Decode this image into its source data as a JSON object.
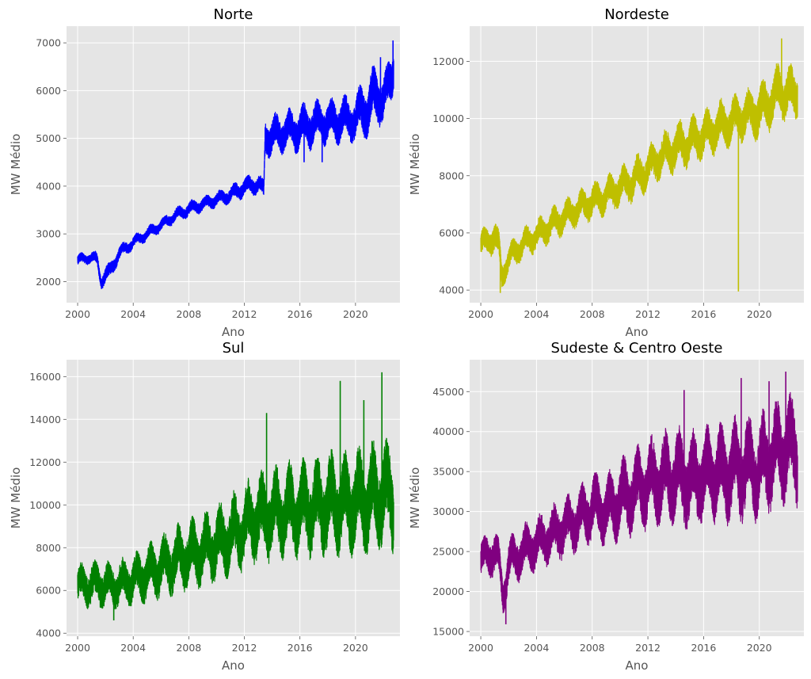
{
  "chart_data": [
    {
      "type": "line",
      "title": "Norte",
      "xlabel": "Ano",
      "ylabel": "MW Médio",
      "xlim": [
        1999.2,
        2023.2
      ],
      "ylim": [
        1560,
        7350
      ],
      "xticks": [
        2000,
        2004,
        2008,
        2012,
        2016,
        2020
      ],
      "xtick_labels": [
        "2000",
        "2004",
        "2008",
        "2012",
        "2016",
        "2020"
      ],
      "yticks": [
        2000,
        3000,
        4000,
        5000,
        6000,
        7000
      ],
      "ytick_labels": [
        "2000",
        "3000",
        "4000",
        "5000",
        "6000",
        "7000"
      ],
      "grid": true,
      "color": "#0000ff",
      "series": [
        {
          "x": [
            2000.0,
            2000.5,
            2001.0,
            2001.4,
            2001.7,
            2002.0,
            2002.3,
            2003.0,
            2004.0,
            2005.0,
            2006.0,
            2007.0,
            2008.0,
            2009.0,
            2010.0,
            2011.0,
            2012.0,
            2013.0,
            2013.4,
            2013.5,
            2014.0,
            2015.0,
            2016.0,
            2017.0,
            2018.0,
            2019.0,
            2020.0,
            2020.5,
            2021.0,
            2021.5,
            2022.0,
            2022.3,
            2022.6,
            2022.75
          ],
          "y": [
            2450,
            2480,
            2520,
            2450,
            2000,
            2150,
            2200,
            2600,
            2820,
            3000,
            3180,
            3380,
            3520,
            3620,
            3720,
            3820,
            3980,
            4050,
            3900,
            5050,
            5050,
            5150,
            5200,
            5300,
            5350,
            5400,
            5400,
            5600,
            5700,
            5900,
            5800,
            6000,
            6300,
            6600
          ],
          "band": [
            120,
            120,
            120,
            150,
            150,
            180,
            180,
            150,
            130,
            130,
            130,
            140,
            150,
            150,
            150,
            170,
            200,
            200,
            200,
            400,
            400,
            400,
            450,
            450,
            450,
            450,
            450,
            550,
            600,
            600,
            500,
            500,
            500,
            500
          ],
          "spikes": [
            {
              "x": 2022.7,
              "y": 7050
            },
            {
              "x": 2021.8,
              "y": 6700
            },
            {
              "x": 2016.3,
              "y": 4500
            },
            {
              "x": 2017.6,
              "y": 4500
            }
          ]
        }
      ]
    },
    {
      "type": "line",
      "title": "Nordeste",
      "xlabel": "Ano",
      "ylabel": "MW Médio",
      "xlim": [
        1999.2,
        2023.2
      ],
      "ylim": [
        3560,
        13230
      ],
      "xticks": [
        2000,
        2004,
        2008,
        2012,
        2016,
        2020
      ],
      "xtick_labels": [
        "2000",
        "2004",
        "2008",
        "2012",
        "2016",
        "2020"
      ],
      "yticks": [
        4000,
        6000,
        8000,
        10000,
        12000
      ],
      "ytick_labels": [
        "4000",
        "6000",
        "8000",
        "10000",
        "12000"
      ],
      "grid": true,
      "color": "#bfbf00",
      "series": [
        {
          "x": [
            2000.0,
            2000.5,
            2001.0,
            2001.3,
            2001.5,
            2002.0,
            2003.0,
            2004.0,
            2005.0,
            2006.0,
            2007.0,
            2008.0,
            2009.0,
            2010.0,
            2011.0,
            2012.0,
            2013.0,
            2014.0,
            2015.0,
            2016.0,
            2017.0,
            2018.0,
            2019.0,
            2020.0,
            2021.0,
            2021.5,
            2022.0,
            2022.5,
            2022.75
          ],
          "y": [
            5600,
            5700,
            5900,
            5500,
            4500,
            5100,
            5600,
            5900,
            6250,
            6550,
            6850,
            7100,
            7300,
            7600,
            7850,
            8250,
            8700,
            9000,
            9200,
            9400,
            9700,
            9900,
            10100,
            10250,
            10700,
            11000,
            10900,
            10800,
            11000
          ],
          "band": [
            500,
            500,
            550,
            500,
            500,
            500,
            500,
            500,
            550,
            550,
            550,
            600,
            600,
            650,
            700,
            700,
            700,
            800,
            800,
            800,
            800,
            800,
            800,
            900,
            900,
            900,
            900,
            900,
            900
          ],
          "spikes": [
            {
              "x": 2018.5,
              "y": 3950
            },
            {
              "x": 2021.6,
              "y": 12800
            },
            {
              "x": 2001.4,
              "y": 3900
            }
          ]
        }
      ]
    },
    {
      "type": "line",
      "title": "Sul",
      "xlabel": "Ano",
      "ylabel": "MW Médio",
      "xlim": [
        1999.2,
        2023.2
      ],
      "ylim": [
        3860,
        16790
      ],
      "xticks": [
        2000,
        2004,
        2008,
        2012,
        2016,
        2020
      ],
      "xtick_labels": [
        "2000",
        "2004",
        "2008",
        "2012",
        "2016",
        "2020"
      ],
      "yticks": [
        4000,
        6000,
        8000,
        10000,
        12000,
        14000,
        16000
      ],
      "ytick_labels": [
        "4000",
        "6000",
        "8000",
        "10000",
        "12000",
        "14000",
        "16000"
      ],
      "grid": true,
      "color": "#008000",
      "series": [
        {
          "x": [
            2000.0,
            2001.0,
            2002.0,
            2003.0,
            2004.0,
            2005.0,
            2006.0,
            2007.0,
            2008.0,
            2009.0,
            2010.0,
            2011.0,
            2012.0,
            2013.0,
            2014.0,
            2015.0,
            2016.0,
            2017.0,
            2018.0,
            2019.0,
            2020.0,
            2021.0,
            2022.0,
            2022.75
          ],
          "y": [
            6200,
            6300,
            6250,
            6300,
            6500,
            6800,
            7100,
            7400,
            7700,
            7900,
            8200,
            8500,
            9000,
            9400,
            9600,
            9700,
            9800,
            9900,
            10000,
            10100,
            10100,
            10300,
            10500,
            10300
          ],
          "band": [
            900,
            1000,
            1000,
            1000,
            1100,
            1200,
            1300,
            1400,
            1500,
            1500,
            1600,
            1700,
            1800,
            1900,
            2000,
            2000,
            2000,
            2100,
            2200,
            2200,
            2200,
            2300,
            2300,
            2300
          ],
          "spikes": [
            {
              "x": 2021.9,
              "y": 16200
            },
            {
              "x": 2018.9,
              "y": 15800
            },
            {
              "x": 2020.6,
              "y": 14900
            },
            {
              "x": 2013.6,
              "y": 14300
            },
            {
              "x": 2002.6,
              "y": 4600
            }
          ]
        }
      ]
    },
    {
      "type": "line",
      "title": "Sudeste & Centro Oeste",
      "xlabel": "Ano",
      "ylabel": "MW Médio",
      "xlim": [
        1999.2,
        2023.2
      ],
      "ylim": [
        14410,
        48990
      ],
      "xticks": [
        2000,
        2004,
        2008,
        2012,
        2016,
        2020
      ],
      "xtick_labels": [
        "2000",
        "2004",
        "2008",
        "2012",
        "2016",
        "2020"
      ],
      "yticks": [
        15000,
        20000,
        25000,
        30000,
        35000,
        40000,
        45000
      ],
      "ytick_labels": [
        "15000",
        "20000",
        "25000",
        "30000",
        "35000",
        "40000",
        "45000"
      ],
      "grid": true,
      "color": "#800080",
      "series": [
        {
          "x": [
            2000.0,
            2000.5,
            2001.0,
            2001.3,
            2001.6,
            2002.0,
            2003.0,
            2004.0,
            2005.0,
            2006.0,
            2007.0,
            2008.0,
            2009.0,
            2010.0,
            2011.0,
            2012.0,
            2013.0,
            2014.0,
            2015.0,
            2016.0,
            2017.0,
            2018.0,
            2019.0,
            2020.0,
            2021.0,
            2022.0,
            2022.75
          ],
          "y": [
            24000,
            24500,
            25000,
            23500,
            19500,
            23500,
            25000,
            26000,
            27000,
            28000,
            29000,
            30500,
            30000,
            31500,
            32500,
            33500,
            34000,
            34500,
            34000,
            34500,
            35000,
            35000,
            35500,
            35500,
            37000,
            38000,
            37500
          ],
          "band": [
            2500,
            2500,
            2800,
            2500,
            2500,
            2800,
            3000,
            3000,
            3200,
            3500,
            3500,
            4000,
            4000,
            4500,
            4800,
            5000,
            5200,
            5500,
            5500,
            5500,
            5500,
            5800,
            6000,
            5800,
            6000,
            6000,
            6000
          ],
          "spikes": [
            {
              "x": 2021.9,
              "y": 47500
            },
            {
              "x": 2018.7,
              "y": 46700
            },
            {
              "x": 2020.7,
              "y": 46300
            },
            {
              "x": 2001.8,
              "y": 15900
            },
            {
              "x": 2014.6,
              "y": 45200
            }
          ]
        }
      ]
    }
  ]
}
